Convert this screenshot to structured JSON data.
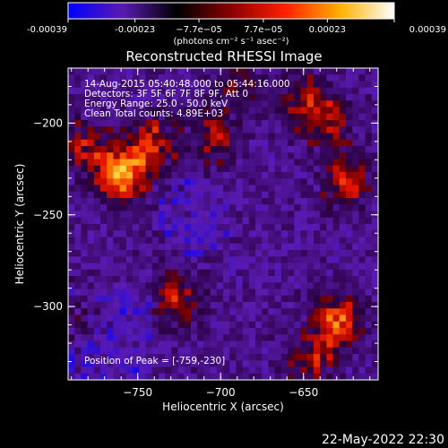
{
  "chart_data": {
    "type": "heatmap",
    "title": "Reconstructed RHESSI Image",
    "colorbar": {
      "ticks": [
        -0.00039,
        -0.00023,
        -7.7e-05,
        7.7e-05,
        0.00023,
        0.00039
      ],
      "tick_labels": [
        "-0.00039",
        "-0.00023",
        "−7.7e−05",
        "7.7e−05",
        "0.00023",
        "0.00039"
      ],
      "units": "(photons cm⁻² s⁻¹ asec⁻²)",
      "range": [
        -0.00039,
        0.00039
      ],
      "colors": [
        "#0000ff",
        "#5a1ab0",
        "#000000",
        "#8a0000",
        "#ff2000",
        "#ffb000",
        "#ffffff"
      ]
    },
    "xaxis": {
      "label": "Heliocentric X (arcsec)",
      "ticks": [
        -750,
        -700,
        -650
      ],
      "tick_labels": [
        "−750",
        "−700",
        "−650"
      ],
      "range": [
        -792,
        -605
      ]
    },
    "yaxis": {
      "label": "Heliocentric Y (arcsec)",
      "ticks": [
        -200,
        -250,
        -300
      ],
      "tick_labels": [
        "−200",
        "−250",
        "−300"
      ],
      "range": [
        -340,
        -170
      ]
    },
    "annotations": [
      "14-Aug-2015 05:40:48.000 to 05:44:16.000",
      "Detectors: 3F 5F 6F 7F 8F 9F, Att 0",
      "Energy Range: 25.0 - 50.0 keV",
      "Clean    Total counts: 4.89E+03"
    ],
    "peak_label": "Position of Peak = [-759,-230]",
    "peak": [
      -759,
      -230
    ],
    "grid": false,
    "sources": [
      {
        "x": -760,
        "y": -228,
        "peak": 0.00039
      },
      {
        "x": -742,
        "y": -212,
        "peak": 0.00026
      },
      {
        "x": -783,
        "y": -213,
        "peak": 0.0002
      },
      {
        "x": -630,
        "y": -308,
        "peak": 0.00032
      },
      {
        "x": -645,
        "y": -330,
        "peak": 0.0002
      },
      {
        "x": -625,
        "y": -232,
        "peak": 0.00024
      },
      {
        "x": -650,
        "y": -188,
        "peak": 0.0002
      },
      {
        "x": -635,
        "y": -200,
        "peak": 0.00017
      },
      {
        "x": -727,
        "y": -295,
        "peak": 0.00022
      },
      {
        "x": -705,
        "y": -208,
        "peak": 0.00017
      },
      {
        "x": -690,
        "y": -178,
        "peak": 0.00013
      },
      {
        "x": -785,
        "y": -305,
        "peak": 0.00016
      }
    ]
  },
  "footer": {
    "timestamp": "22-May-2022 22:30"
  }
}
